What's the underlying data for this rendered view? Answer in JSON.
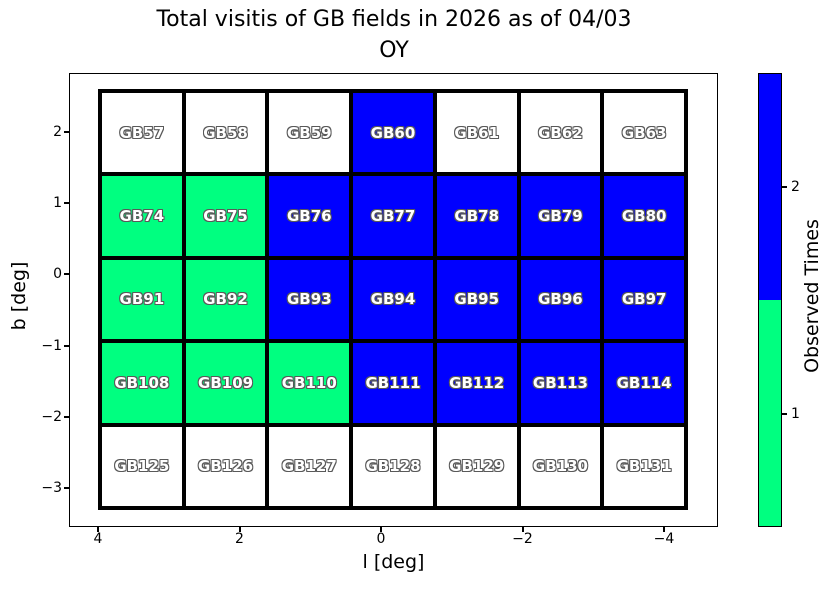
{
  "title": {
    "line1": "Total visitis of GB fields in 2026 as of 04/03",
    "line2": "OY"
  },
  "chart_data": {
    "type": "heatmap",
    "title": "Total visitis of GB fields in 2026 as of 04/03 OY",
    "xlabel": "l [deg]",
    "ylabel": "b [deg]",
    "x_ticks": [
      4,
      2,
      0,
      -2,
      -4
    ],
    "y_ticks": [
      2,
      1,
      0,
      -1,
      -2,
      -3
    ],
    "x_axis_inverted": true,
    "grid_shape": {
      "rows": 5,
      "cols": 7
    },
    "colorbar": {
      "label": "Observed Times",
      "ticks": [
        2,
        1
      ],
      "segment_colors": [
        "#0000ff",
        "#00ff80"
      ],
      "colors": {
        "0": "#ffffff",
        "1": "#00ff80",
        "2": "#0000ff"
      }
    },
    "rows": [
      {
        "fields": [
          "GB57",
          "GB58",
          "GB59",
          "GB60",
          "GB61",
          "GB62",
          "GB63"
        ],
        "visits": [
          0,
          0,
          0,
          2,
          0,
          0,
          0
        ]
      },
      {
        "fields": [
          "GB74",
          "GB75",
          "GB76",
          "GB77",
          "GB78",
          "GB79",
          "GB80"
        ],
        "visits": [
          1,
          1,
          2,
          2,
          2,
          2,
          2
        ]
      },
      {
        "fields": [
          "GB91",
          "GB92",
          "GB93",
          "GB94",
          "GB95",
          "GB96",
          "GB97"
        ],
        "visits": [
          1,
          1,
          2,
          2,
          2,
          2,
          2
        ]
      },
      {
        "fields": [
          "GB108",
          "GB109",
          "GB110",
          "GB111",
          "GB112",
          "GB113",
          "GB114"
        ],
        "visits": [
          1,
          1,
          1,
          2,
          2,
          2,
          2
        ]
      },
      {
        "fields": [
          "GB125",
          "GB126",
          "GB127",
          "GB128",
          "GB129",
          "GB130",
          "GB131"
        ],
        "visits": [
          0,
          0,
          0,
          0,
          0,
          0,
          0
        ]
      }
    ]
  }
}
